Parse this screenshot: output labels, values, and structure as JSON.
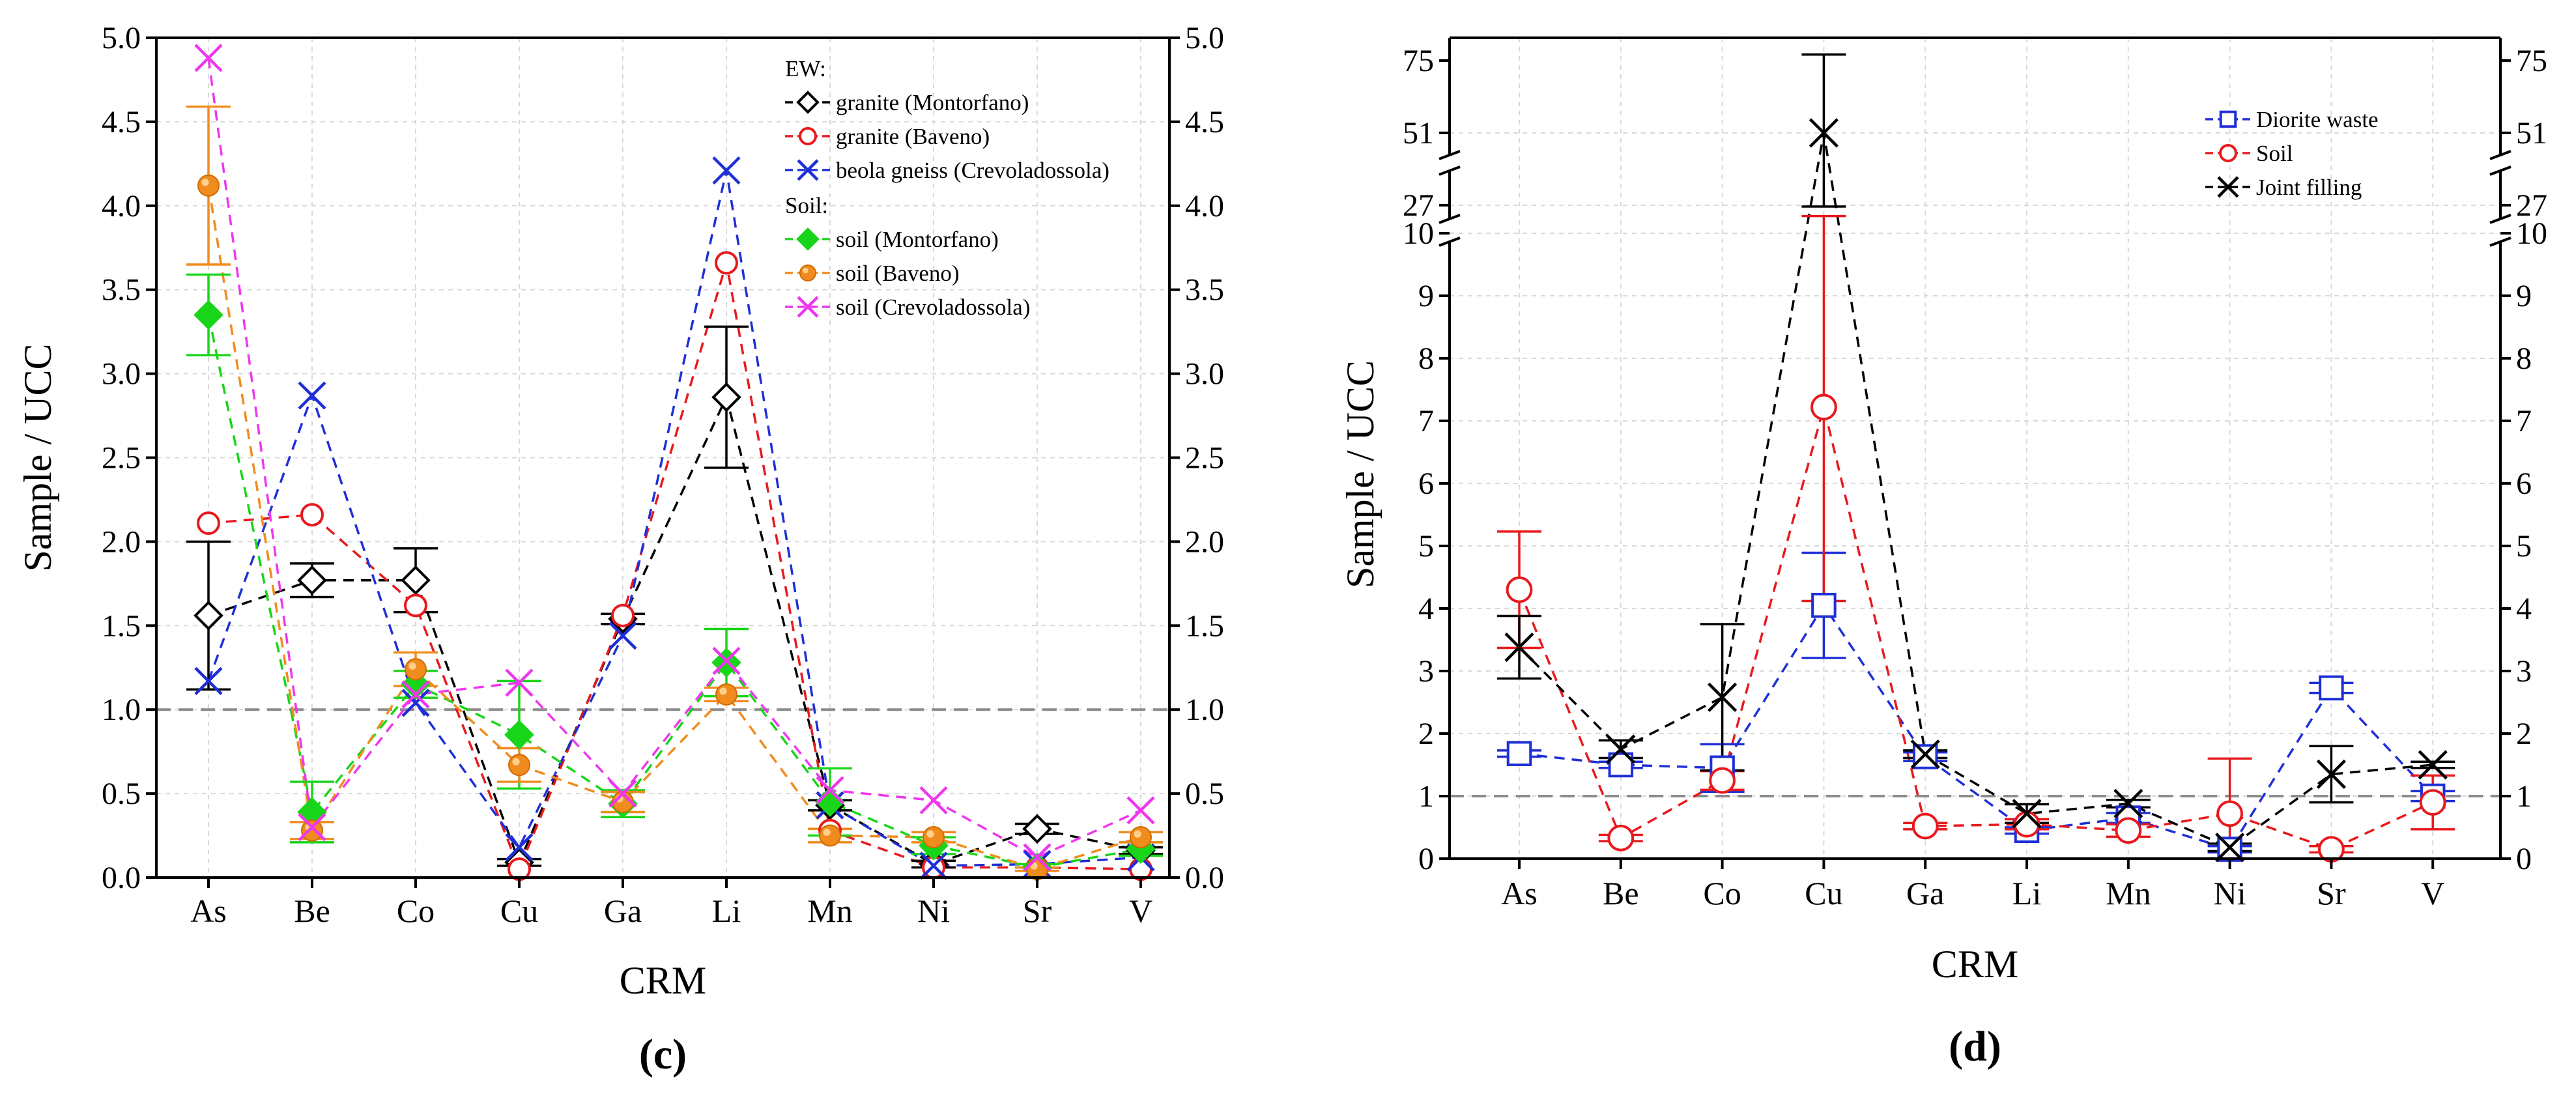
{
  "chart_data": [
    {
      "type": "line",
      "panel_label": "(c)",
      "xlabel": "CRM",
      "ylabel": "Sample / UCC",
      "categories": [
        "As",
        "Be",
        "Co",
        "Cu",
        "Ga",
        "Li",
        "Mn",
        "Ni",
        "Sr",
        "V"
      ],
      "ylim": [
        0,
        5.0
      ],
      "yticks": [
        "0.0",
        "0.5",
        "1.0",
        "1.5",
        "2.0",
        "2.5",
        "3.0",
        "3.5",
        "4.0",
        "4.5",
        "5.0"
      ],
      "right_axis_mirror": true,
      "reference_line": 1.0,
      "grid": true,
      "legend_position": "top-right",
      "legend_groups": [
        {
          "label": "EW:",
          "series": [
            0,
            1,
            2
          ]
        },
        {
          "label": "Soil:",
          "series": [
            3,
            4,
            5
          ]
        }
      ],
      "series": [
        {
          "name": "granite (Montorfano)",
          "color": "#000000",
          "marker": "diamond-open",
          "values": [
            1.56,
            1.77,
            1.77,
            0.09,
            1.54,
            2.86,
            0.43,
            0.08,
            0.29,
            0.16
          ],
          "errors": [
            0.44,
            0.1,
            0.19,
            0.02,
            0.03,
            0.42,
            0.03,
            0.02,
            0.03,
            0.02
          ]
        },
        {
          "name": "granite (Baveno)",
          "color": "#e8191d",
          "marker": "circle-open",
          "values": [
            2.11,
            2.16,
            1.62,
            0.05,
            1.56,
            3.66,
            0.28,
            0.06,
            0.06,
            0.05
          ],
          "errors": [
            null,
            null,
            null,
            null,
            null,
            null,
            null,
            null,
            null,
            null
          ]
        },
        {
          "name": "beola gneiss (Crevoladossola)",
          "color": "#1f2fd6",
          "marker": "x",
          "values": [
            1.17,
            2.87,
            1.04,
            0.18,
            1.44,
            4.21,
            0.43,
            0.07,
            0.08,
            0.12
          ],
          "errors": [
            null,
            null,
            null,
            null,
            null,
            null,
            null,
            null,
            null,
            null
          ]
        },
        {
          "name": "soil (Montorfano)",
          "color": "#19d519",
          "marker": "diamond-filled",
          "values": [
            3.35,
            0.39,
            1.15,
            0.85,
            0.44,
            1.28,
            0.45,
            0.19,
            0.06,
            0.17
          ],
          "errors": [
            0.24,
            0.18,
            0.08,
            0.32,
            0.08,
            0.2,
            0.2,
            0.05,
            0.02,
            0.04
          ]
        },
        {
          "name": "soil (Baveno)",
          "color": "#f08c1e",
          "marker": "circle-filled",
          "values": [
            4.12,
            0.28,
            1.24,
            0.67,
            0.45,
            1.09,
            0.25,
            0.24,
            0.05,
            0.24
          ],
          "errors": [
            0.47,
            0.05,
            0.1,
            0.1,
            0.06,
            0.04,
            0.04,
            0.03,
            0.01,
            0.03
          ]
        },
        {
          "name": "soil (Crevoladossola)",
          "color": "#ee37ee",
          "marker": "x",
          "values": [
            4.88,
            0.3,
            1.09,
            1.16,
            0.5,
            1.29,
            0.52,
            0.46,
            0.12,
            0.4
          ],
          "errors": [
            null,
            null,
            null,
            null,
            null,
            null,
            null,
            null,
            null,
            null
          ]
        }
      ]
    },
    {
      "type": "line",
      "panel_label": "(d)",
      "xlabel": "CRM",
      "ylabel": "Sample / UCC",
      "categories": [
        "As",
        "Be",
        "Co",
        "Cu",
        "Ga",
        "Li",
        "Mn",
        "Ni",
        "Sr",
        "V"
      ],
      "ylim": [
        0,
        75
      ],
      "broken_axis": true,
      "yticks": [
        "0",
        "1",
        "2",
        "3",
        "4",
        "5",
        "6",
        "7",
        "8",
        "9",
        "10",
        "27",
        "51",
        "75"
      ],
      "right_axis_mirror": true,
      "reference_line": 1.0,
      "grid": true,
      "legend_position": "top-right",
      "series": [
        {
          "name": "Diorite waste",
          "color": "#1f2fd6",
          "marker": "square-open",
          "values": [
            1.68,
            1.5,
            1.45,
            4.05,
            1.63,
            0.45,
            0.65,
            0.15,
            2.73,
            1.0
          ],
          "errors": [
            0.05,
            0.05,
            0.38,
            0.84,
            0.07,
            0.05,
            0.08,
            0.05,
            0.08,
            0.08
          ]
        },
        {
          "name": "Soil",
          "color": "#e8191d",
          "marker": "circle-open",
          "values": [
            4.3,
            0.33,
            1.25,
            7.22,
            0.52,
            0.55,
            0.45,
            0.72,
            0.15,
            0.9
          ],
          "errors": [
            0.93,
            0.05,
            0.15,
            3.1,
            0.05,
            0.08,
            0.1,
            0.88,
            0.05,
            0.43
          ]
        },
        {
          "name": "Joint filling",
          "color": "#000000",
          "marker": "x",
          "values": [
            3.38,
            1.75,
            2.58,
            51,
            1.67,
            0.72,
            0.88,
            0.18,
            1.35,
            1.5
          ],
          "errors": [
            0.5,
            0.14,
            1.17,
            26,
            0.06,
            0.15,
            0.06,
            0.06,
            0.45,
            0.05
          ]
        }
      ]
    }
  ]
}
